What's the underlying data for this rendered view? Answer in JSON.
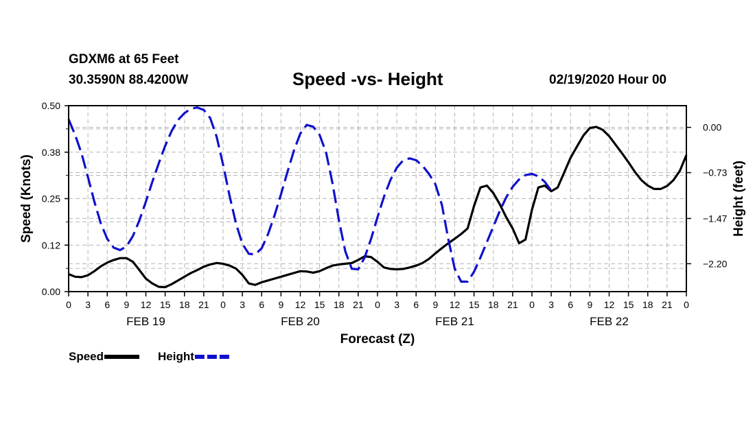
{
  "header": {
    "station": "GDXM6 at 65 Feet",
    "coords": "30.3590N 88.4200W",
    "title": "Speed -vs- Height",
    "run": "02/19/2020 Hour 00"
  },
  "chart_data": {
    "type": "line",
    "title": "Speed -vs- Height",
    "xlabel": "Forecast (Z)",
    "ylabel": "Speed (Knots)",
    "y2label": "Height (feet)",
    "xlim": [
      0,
      96
    ],
    "ylim": [
      0,
      0.5
    ],
    "y2lim": [
      -2.65,
      0.35
    ],
    "grid": true,
    "x_tick_step_hours": 3,
    "x_tick_labels": [
      "0",
      "3",
      "6",
      "9",
      "12",
      "15",
      "18",
      "21",
      "0",
      "3",
      "6",
      "9",
      "12",
      "15",
      "18",
      "21",
      "0",
      "3",
      "6",
      "9",
      "12",
      "15",
      "18",
      "21",
      "0",
      "3",
      "6",
      "9",
      "12",
      "15",
      "18",
      "21",
      "0"
    ],
    "day_labels": [
      {
        "label": "FEB 19",
        "hour": 12
      },
      {
        "label": "FEB 20",
        "hour": 36
      },
      {
        "label": "FEB 21",
        "hour": 60
      },
      {
        "label": "FEB 22",
        "hour": 84
      }
    ],
    "y_ticks": [
      0.0,
      0.125,
      0.25,
      0.375,
      0.5
    ],
    "y_tick_labels": [
      "0.00",
      "0.12",
      "0.25",
      "0.38",
      "0.50"
    ],
    "y2_ticks": [
      0.0,
      -0.73,
      -1.47,
      -2.2
    ],
    "y2_tick_labels": [
      "0.00",
      "−0.73",
      "−1.47",
      "−2.20"
    ],
    "series": [
      {
        "name": "Speed",
        "axis": "left",
        "color": "#000000",
        "dash": "solid",
        "points": [
          [
            0,
            0.047
          ],
          [
            1,
            0.04
          ],
          [
            2,
            0.039
          ],
          [
            3,
            0.044
          ],
          [
            4,
            0.055
          ],
          [
            5,
            0.068
          ],
          [
            6,
            0.078
          ],
          [
            7,
            0.085
          ],
          [
            8,
            0.09
          ],
          [
            9,
            0.09
          ],
          [
            10,
            0.08
          ],
          [
            11,
            0.058
          ],
          [
            12,
            0.035
          ],
          [
            13,
            0.022
          ],
          [
            14,
            0.013
          ],
          [
            15,
            0.012
          ],
          [
            16,
            0.02
          ],
          [
            17,
            0.03
          ],
          [
            18,
            0.04
          ],
          [
            19,
            0.05
          ],
          [
            20,
            0.058
          ],
          [
            21,
            0.067
          ],
          [
            22,
            0.073
          ],
          [
            23,
            0.077
          ],
          [
            24,
            0.075
          ],
          [
            25,
            0.07
          ],
          [
            26,
            0.062
          ],
          [
            27,
            0.045
          ],
          [
            28,
            0.022
          ],
          [
            29,
            0.018
          ],
          [
            30,
            0.025
          ],
          [
            31,
            0.03
          ],
          [
            32,
            0.035
          ],
          [
            33,
            0.04
          ],
          [
            34,
            0.045
          ],
          [
            35,
            0.05
          ],
          [
            36,
            0.055
          ],
          [
            37,
            0.054
          ],
          [
            38,
            0.051
          ],
          [
            39,
            0.055
          ],
          [
            40,
            0.063
          ],
          [
            41,
            0.07
          ],
          [
            42,
            0.073
          ],
          [
            43,
            0.075
          ],
          [
            44,
            0.077
          ],
          [
            45,
            0.085
          ],
          [
            46,
            0.095
          ],
          [
            47,
            0.093
          ],
          [
            48,
            0.08
          ],
          [
            49,
            0.065
          ],
          [
            50,
            0.061
          ],
          [
            51,
            0.06
          ],
          [
            52,
            0.061
          ],
          [
            53,
            0.065
          ],
          [
            54,
            0.07
          ],
          [
            55,
            0.077
          ],
          [
            56,
            0.088
          ],
          [
            57,
            0.103
          ],
          [
            58,
            0.117
          ],
          [
            59,
            0.13
          ],
          [
            60,
            0.142
          ],
          [
            61,
            0.155
          ],
          [
            62,
            0.17
          ],
          [
            63,
            0.23
          ],
          [
            64,
            0.28
          ],
          [
            65,
            0.285
          ],
          [
            66,
            0.265
          ],
          [
            67,
            0.235
          ],
          [
            68,
            0.2
          ],
          [
            69,
            0.17
          ],
          [
            70,
            0.13
          ],
          [
            71,
            0.14
          ],
          [
            72,
            0.22
          ],
          [
            73,
            0.28
          ],
          [
            74,
            0.285
          ],
          [
            75,
            0.27
          ],
          [
            76,
            0.28
          ],
          [
            77,
            0.32
          ],
          [
            78,
            0.36
          ],
          [
            79,
            0.39
          ],
          [
            80,
            0.42
          ],
          [
            81,
            0.44
          ],
          [
            82,
            0.443
          ],
          [
            83,
            0.435
          ],
          [
            84,
            0.418
          ],
          [
            85,
            0.395
          ],
          [
            86,
            0.372
          ],
          [
            87,
            0.348
          ],
          [
            88,
            0.322
          ],
          [
            89,
            0.3
          ],
          [
            90,
            0.285
          ],
          [
            91,
            0.276
          ],
          [
            92,
            0.276
          ],
          [
            93,
            0.284
          ],
          [
            94,
            0.3
          ],
          [
            95,
            0.325
          ],
          [
            96,
            0.367
          ]
        ]
      },
      {
        "name": "Height",
        "axis": "right",
        "color": "#1010CC",
        "dash": "dashed",
        "points": [
          [
            0,
            0.13
          ],
          [
            1,
            -0.12
          ],
          [
            2,
            -0.42
          ],
          [
            3,
            -0.8
          ],
          [
            4,
            -1.2
          ],
          [
            5,
            -1.55
          ],
          [
            6,
            -1.8
          ],
          [
            7,
            -1.94
          ],
          [
            8,
            -1.98
          ],
          [
            9,
            -1.92
          ],
          [
            10,
            -1.75
          ],
          [
            11,
            -1.5
          ],
          [
            12,
            -1.2
          ],
          [
            13,
            -0.88
          ],
          [
            14,
            -0.58
          ],
          [
            15,
            -0.3
          ],
          [
            16,
            -0.06
          ],
          [
            17,
            0.12
          ],
          [
            18,
            0.23
          ],
          [
            19,
            0.3
          ],
          [
            20,
            0.32
          ],
          [
            21,
            0.28
          ],
          [
            22,
            0.15
          ],
          [
            23,
            -0.15
          ],
          [
            24,
            -0.6
          ],
          [
            25,
            -1.1
          ],
          [
            26,
            -1.55
          ],
          [
            27,
            -1.88
          ],
          [
            28,
            -2.04
          ],
          [
            29,
            -2.05
          ],
          [
            30,
            -1.95
          ],
          [
            31,
            -1.72
          ],
          [
            32,
            -1.42
          ],
          [
            33,
            -1.08
          ],
          [
            34,
            -0.72
          ],
          [
            35,
            -0.38
          ],
          [
            36,
            -0.1
          ],
          [
            37,
            0.04
          ],
          [
            38,
            0.01
          ],
          [
            39,
            -0.12
          ],
          [
            40,
            -0.4
          ],
          [
            41,
            -0.9
          ],
          [
            42,
            -1.5
          ],
          [
            43,
            -2.0
          ],
          [
            44,
            -2.28
          ],
          [
            45,
            -2.29
          ],
          [
            46,
            -2.1
          ],
          [
            47,
            -1.8
          ],
          [
            48,
            -1.45
          ],
          [
            49,
            -1.12
          ],
          [
            50,
            -0.85
          ],
          [
            51,
            -0.65
          ],
          [
            52,
            -0.53
          ],
          [
            53,
            -0.5
          ],
          [
            54,
            -0.53
          ],
          [
            55,
            -0.62
          ],
          [
            56,
            -0.75
          ],
          [
            57,
            -0.92
          ],
          [
            58,
            -1.25
          ],
          [
            59,
            -1.8
          ],
          [
            60,
            -2.28
          ],
          [
            61,
            -2.49
          ],
          [
            62,
            -2.49
          ],
          [
            63,
            -2.33
          ],
          [
            64,
            -2.1
          ],
          [
            65,
            -1.85
          ],
          [
            66,
            -1.6
          ],
          [
            67,
            -1.35
          ],
          [
            68,
            -1.13
          ],
          [
            69,
            -0.96
          ],
          [
            70,
            -0.84
          ],
          [
            71,
            -0.77
          ],
          [
            72,
            -0.75
          ],
          [
            73,
            -0.79
          ],
          [
            74,
            -0.88
          ],
          [
            75,
            -1.02
          ]
        ]
      }
    ],
    "legend": {
      "placement": "bottom-left",
      "entries": [
        {
          "label": "Speed",
          "color": "#000000",
          "dash": "solid"
        },
        {
          "label": "Height",
          "color": "#1010CC",
          "dash": "dashed"
        }
      ]
    }
  }
}
